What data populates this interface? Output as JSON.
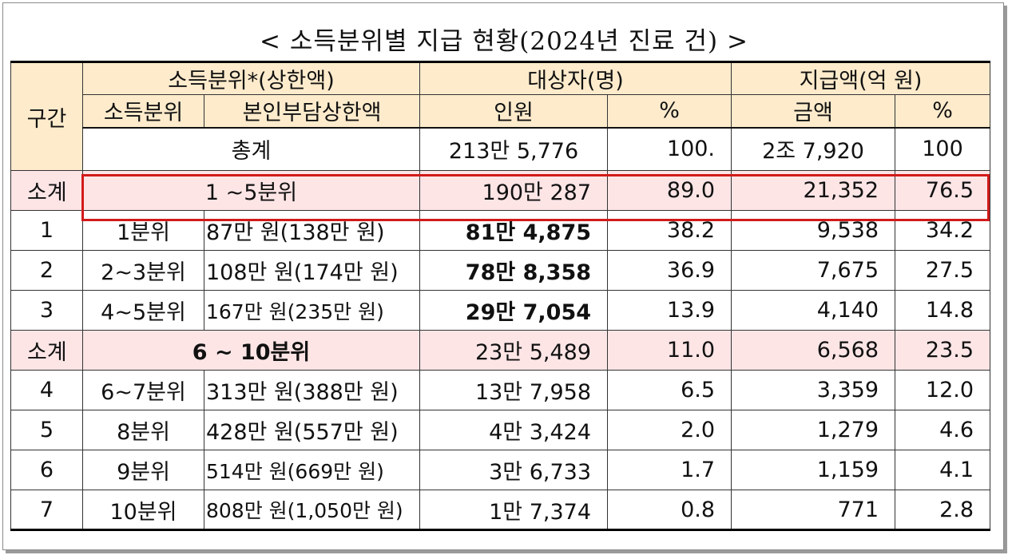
{
  "title": "< 소득분위별 지급 현황(2024년 진료 건) >",
  "headers": {
    "section": "구간",
    "income_group": "소득분위*(상한액)",
    "income_decile": "소득분위",
    "copay_cap": "본인부담상한액",
    "recipients": "대상자(명)",
    "recipient_count": "인원",
    "recipient_pct": "%",
    "payout": "지급액(억 원)",
    "payout_amount": "금액",
    "payout_pct": "%"
  },
  "total": {
    "label": "총계",
    "count": "213만 5,776",
    "count_pct": "100.",
    "amount": "2조 7,920",
    "amount_pct": "100"
  },
  "subtotal_low": {
    "section": "소계",
    "label": "1 ~5분위",
    "count": "190만 287",
    "count_pct": "89.0",
    "amount": "21,352",
    "amount_pct": "76.5"
  },
  "rows_low": [
    {
      "section": "1",
      "decile": "1분위",
      "cap": "87만 원(138만 원)",
      "count": "81만 4,875",
      "count_pct": "38.2",
      "amount": "9,538",
      "amount_pct": "34.2"
    },
    {
      "section": "2",
      "decile": "2~3분위",
      "cap": "108만 원(174만 원)",
      "count": "78만 8,358",
      "count_pct": "36.9",
      "amount": "7,675",
      "amount_pct": "27.5"
    },
    {
      "section": "3",
      "decile": "4~5분위",
      "cap": "167만 원(235만 원)",
      "count": "29만 7,054",
      "count_pct": "13.9",
      "amount": "4,140",
      "amount_pct": "14.8"
    }
  ],
  "subtotal_high": {
    "section": "소계",
    "label": "6 ~ 10분위",
    "count": "23만 5,489",
    "count_pct": "11.0",
    "amount": "6,568",
    "amount_pct": "23.5"
  },
  "rows_high": [
    {
      "section": "4",
      "decile": "6~7분위",
      "cap": "313만 원(388만 원)",
      "count": "13만 7,958",
      "count_pct": "6.5",
      "amount": "3,359",
      "amount_pct": "12.0"
    },
    {
      "section": "5",
      "decile": "8분위",
      "cap": "428만 원(557만 원)",
      "count": "4만 3,424",
      "count_pct": "2.0",
      "amount": "1,279",
      "amount_pct": "4.6"
    },
    {
      "section": "6",
      "decile": "9분위",
      "cap": "514만 원(669만 원)",
      "count": "3만 6,733",
      "count_pct": "1.7",
      "amount": "1,159",
      "amount_pct": "4.1"
    },
    {
      "section": "7",
      "decile": "10분위",
      "cap": "808만 원(1,050만 원)",
      "count": "1만 7,374",
      "count_pct": "0.8",
      "amount": "771",
      "amount_pct": "2.8"
    }
  ],
  "colors": {
    "header_bg": "#fdebcc",
    "subtotal_bg": "#fde5e6",
    "highlight_border": "#d21a1a"
  }
}
